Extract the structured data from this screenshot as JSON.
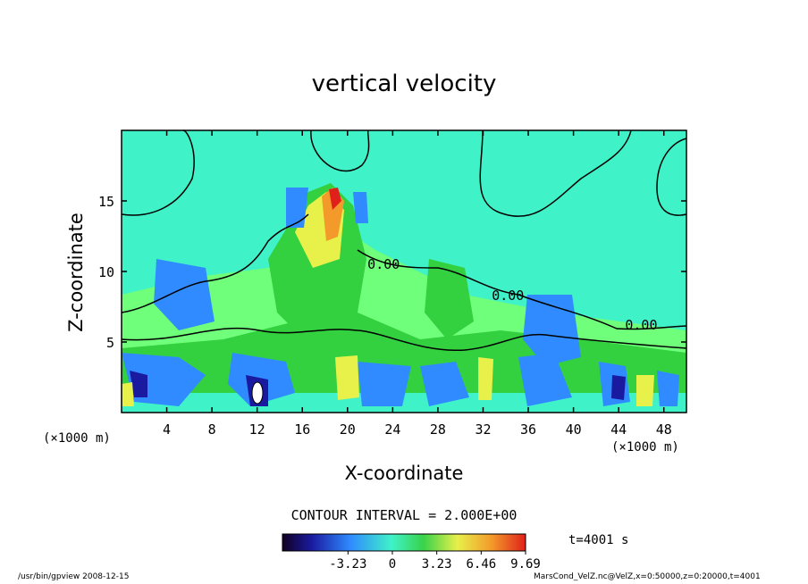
{
  "chart_data": {
    "type": "heatmap",
    "title": "vertical velocity",
    "xlabel": "X-coordinate",
    "ylabel": "Z-coordinate",
    "x_unit": "(×1000 m)",
    "y_unit": "(×1000 m)",
    "xlim": [
      0,
      50
    ],
    "ylim": [
      0,
      20
    ],
    "x_ticks": [
      "4",
      "8",
      "12",
      "16",
      "20",
      "24",
      "28",
      "32",
      "36",
      "40",
      "44",
      "48"
    ],
    "y_ticks": [
      "5",
      "10",
      "15"
    ],
    "contour_interval_label": "CONTOUR INTERVAL = 2.000E+00",
    "contour_labels": [
      {
        "text": "0.00",
        "x": 23.2,
        "z": 10.5
      },
      {
        "text": "0.00",
        "x": 34.2,
        "z": 8.3
      },
      {
        "text": "0.00",
        "x": 46.0,
        "z": 6.2
      }
    ],
    "colorbar": {
      "min": -8.0,
      "max": 9.69,
      "tick_labels": [
        "-3.23",
        "0",
        "3.23",
        "6.46",
        "9.69"
      ],
      "tick_values": [
        -3.23,
        0,
        3.23,
        6.46,
        9.69
      ]
    },
    "time_label": "t=4001 s"
  },
  "footer": {
    "left": "/usr/bin/gpview  2008-12-15",
    "right": "MarsCond_VelZ.nc@VelZ,x=0:50000,z=0:20000,t=4001"
  }
}
